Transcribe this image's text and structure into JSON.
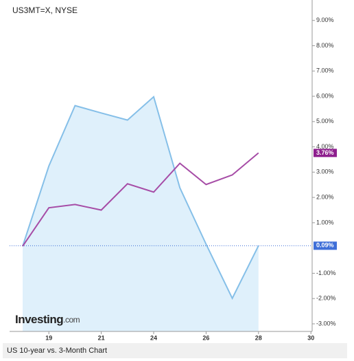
{
  "chart_data": {
    "type": "line",
    "title": "US3MT=X, NYSE",
    "footer": "US 10-year vs. 3-Month Chart",
    "logo": {
      "name": "Investing",
      "suffix": ".com"
    },
    "categories": [
      null,
      "19",
      null,
      "21",
      null,
      "24",
      null,
      "26",
      null,
      "28",
      null,
      "30"
    ],
    "series": [
      {
        "name": "US 3-Month",
        "color": "#85bfe8",
        "fill": "#dff0fb",
        "area": true,
        "values": [
          0.07,
          3.24,
          5.63,
          5.34,
          5.06,
          5.98,
          2.38,
          0.15,
          -1.99,
          0.09,
          null,
          null
        ],
        "value_labels": [
          null,
          null,
          null,
          null,
          null,
          null,
          null,
          null,
          null,
          "0.09%",
          null,
          null
        ],
        "label_color": "#3f6fd8"
      },
      {
        "name": "US 10-Year",
        "color": "#a64ca6",
        "area": false,
        "values": [
          0.07,
          1.59,
          1.72,
          1.5,
          2.54,
          2.21,
          3.35,
          2.51,
          2.89,
          3.76,
          null,
          null
        ],
        "value_labels": [
          null,
          null,
          null,
          null,
          null,
          null,
          null,
          null,
          null,
          "3.76%",
          null,
          null
        ],
        "label_color": "#8e1f8e"
      }
    ],
    "ylim": [
      -3.3,
      9.4
    ],
    "yticks": [
      {
        "value": 9,
        "label": "9.00%"
      },
      {
        "value": 8,
        "label": "8.00%"
      },
      {
        "value": 7,
        "label": "7.00%"
      },
      {
        "value": 6,
        "label": "6.00%"
      },
      {
        "value": 5,
        "label": "5.00%"
      },
      {
        "value": 4,
        "label": "4.00%"
      },
      {
        "value": 3,
        "label": "3.00%"
      },
      {
        "value": 2,
        "label": "2.00%"
      },
      {
        "value": 1,
        "label": "1.00%"
      },
      {
        "value": -1,
        "label": "-1.00%"
      },
      {
        "value": -2,
        "label": "-2.00%"
      },
      {
        "value": -3,
        "label": "-3.00%"
      }
    ],
    "grid": false
  }
}
